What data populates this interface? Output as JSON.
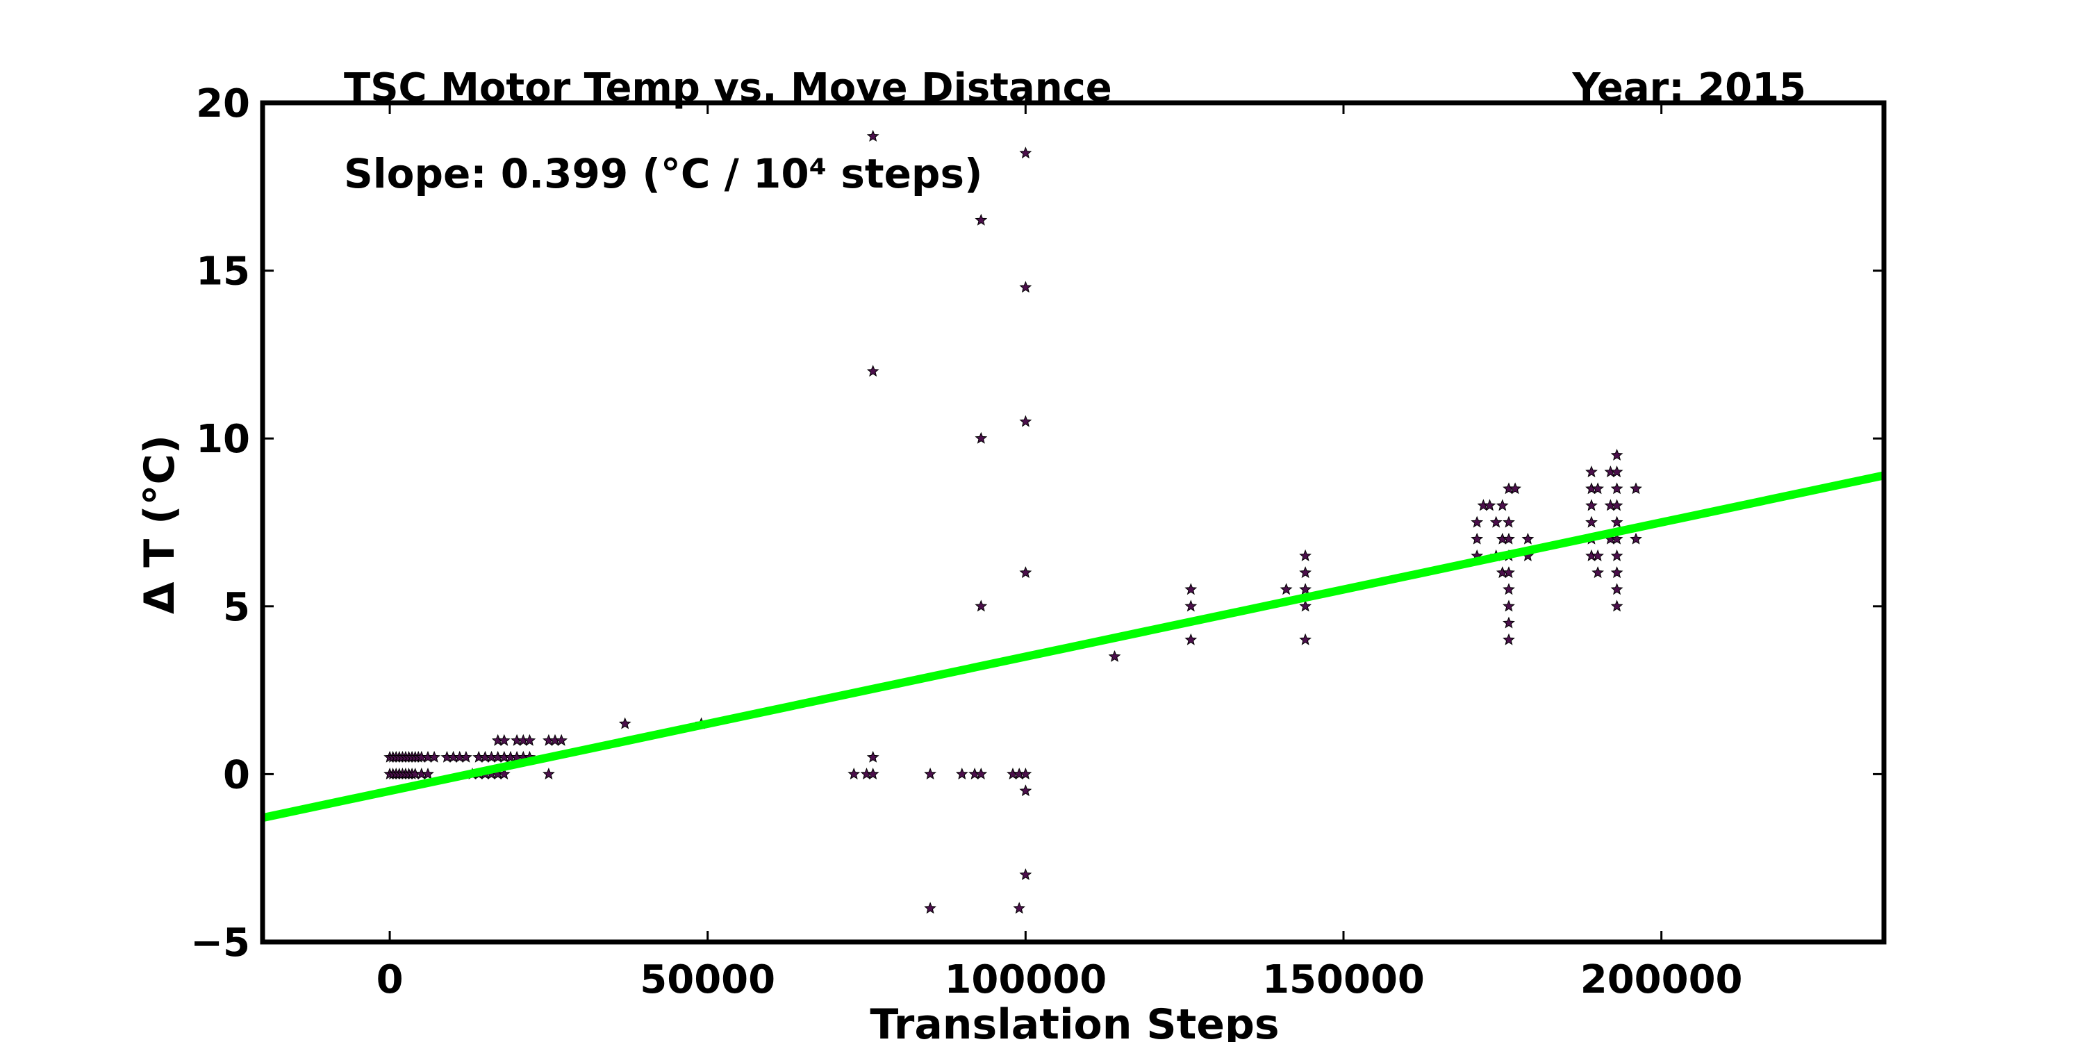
{
  "chart_data": {
    "type": "scatter",
    "title": "TSC Motor Temp vs. Move Distance",
    "year_label": "Year: 2015",
    "slope_label": "Slope:  0.399 (°C / 10⁴  steps)",
    "xlabel": "Translation Steps",
    "ylabel": "Δ T (°C)",
    "xlim": [
      -20000,
      235000
    ],
    "ylim": [
      -5,
      20
    ],
    "xticks": [
      0,
      50000,
      100000,
      150000,
      200000
    ],
    "xtick_labels": [
      "0",
      "50000",
      "100000",
      "150000",
      "200000"
    ],
    "yticks": [
      -5,
      0,
      5,
      10,
      15,
      20
    ],
    "ytick_labels": [
      "−5",
      "0",
      "5",
      "10",
      "15",
      "20"
    ],
    "grid": false,
    "colors": {
      "points": "#4b0f4b",
      "fit_line": "#00ff00",
      "frame": "#000000"
    },
    "fit_line": {
      "x": [
        -20000,
        235000
      ],
      "y": [
        -1.3,
        8.9
      ]
    },
    "series": [
      {
        "marker": "star",
        "points": [
          [
            0,
            0.5
          ],
          [
            500,
            0.5
          ],
          [
            1000,
            0.5
          ],
          [
            1500,
            0.5
          ],
          [
            2000,
            0.5
          ],
          [
            2500,
            0.5
          ],
          [
            3000,
            0.5
          ],
          [
            3500,
            0.5
          ],
          [
            4000,
            0.5
          ],
          [
            4500,
            0.5
          ],
          [
            5000,
            0.5
          ],
          [
            6000,
            0.5
          ],
          [
            7000,
            0.5
          ],
          [
            0,
            0
          ],
          [
            500,
            0
          ],
          [
            1000,
            0
          ],
          [
            1500,
            0
          ],
          [
            2000,
            0
          ],
          [
            2500,
            0
          ],
          [
            3000,
            0
          ],
          [
            3500,
            0
          ],
          [
            4000,
            0
          ],
          [
            5000,
            0
          ],
          [
            6000,
            0
          ],
          [
            9000,
            0.5
          ],
          [
            10000,
            0.5
          ],
          [
            11000,
            0.5
          ],
          [
            12000,
            0.5
          ],
          [
            13000,
            0
          ],
          [
            14000,
            0.5
          ],
          [
            15000,
            0.5
          ],
          [
            16000,
            0.5
          ],
          [
            17000,
            0.5
          ],
          [
            18000,
            0.5
          ],
          [
            19000,
            0.5
          ],
          [
            20000,
            0.5
          ],
          [
            21000,
            0.5
          ],
          [
            22000,
            0.5
          ],
          [
            14000,
            0
          ],
          [
            15000,
            0
          ],
          [
            16000,
            0
          ],
          [
            17000,
            0
          ],
          [
            18000,
            0
          ],
          [
            17000,
            1
          ],
          [
            18000,
            1
          ],
          [
            20000,
            1
          ],
          [
            21000,
            1
          ],
          [
            22000,
            1
          ],
          [
            25000,
            1
          ],
          [
            26000,
            1
          ],
          [
            27000,
            1
          ],
          [
            25000,
            0
          ],
          [
            37000,
            1.5
          ],
          [
            49000,
            1.5
          ],
          [
            73000,
            0
          ],
          [
            75000,
            0
          ],
          [
            76000,
            0
          ],
          [
            76000,
            0.5
          ],
          [
            76000,
            19
          ],
          [
            76000,
            12
          ],
          [
            85000,
            0
          ],
          [
            85000,
            -4
          ],
          [
            90000,
            0
          ],
          [
            92000,
            0
          ],
          [
            93000,
            0
          ],
          [
            93000,
            16.5
          ],
          [
            93000,
            10
          ],
          [
            93000,
            5
          ],
          [
            98000,
            0
          ],
          [
            99000,
            0
          ],
          [
            100000,
            0
          ],
          [
            100000,
            -0.5
          ],
          [
            100000,
            -3
          ],
          [
            99000,
            -4
          ],
          [
            100000,
            18.5
          ],
          [
            100000,
            14.5
          ],
          [
            100000,
            10.5
          ],
          [
            100000,
            6
          ],
          [
            114000,
            3.5
          ],
          [
            126000,
            5.5
          ],
          [
            126000,
            5
          ],
          [
            126000,
            4
          ],
          [
            141000,
            5.5
          ],
          [
            144000,
            6.5
          ],
          [
            144000,
            6
          ],
          [
            144000,
            5.5
          ],
          [
            144000,
            5
          ],
          [
            144000,
            4
          ],
          [
            171000,
            7.5
          ],
          [
            171000,
            7
          ],
          [
            171000,
            6.5
          ],
          [
            172000,
            8
          ],
          [
            173000,
            8
          ],
          [
            174000,
            7.5
          ],
          [
            174000,
            6.5
          ],
          [
            175000,
            8
          ],
          [
            175000,
            7
          ],
          [
            175000,
            6
          ],
          [
            176000,
            8.5
          ],
          [
            176000,
            7.5
          ],
          [
            176000,
            7
          ],
          [
            176000,
            6.5
          ],
          [
            176000,
            6
          ],
          [
            176000,
            5.5
          ],
          [
            176000,
            5
          ],
          [
            176000,
            4.5
          ],
          [
            176000,
            4
          ],
          [
            177000,
            8.5
          ],
          [
            179000,
            7
          ],
          [
            179000,
            6.5
          ],
          [
            189000,
            9
          ],
          [
            189000,
            8.5
          ],
          [
            189000,
            8
          ],
          [
            189000,
            7.5
          ],
          [
            189000,
            7
          ],
          [
            189000,
            6.5
          ],
          [
            190000,
            8.5
          ],
          [
            190000,
            6.5
          ],
          [
            190000,
            6
          ],
          [
            192000,
            9
          ],
          [
            192000,
            8
          ],
          [
            192000,
            7
          ],
          [
            193000,
            9.5
          ],
          [
            193000,
            9
          ],
          [
            193000,
            8.5
          ],
          [
            193000,
            8
          ],
          [
            193000,
            7.5
          ],
          [
            193000,
            7
          ],
          [
            193000,
            6.5
          ],
          [
            193000,
            6
          ],
          [
            193000,
            5.5
          ],
          [
            193000,
            5
          ],
          [
            196000,
            8.5
          ],
          [
            196000,
            7
          ]
        ]
      }
    ]
  }
}
